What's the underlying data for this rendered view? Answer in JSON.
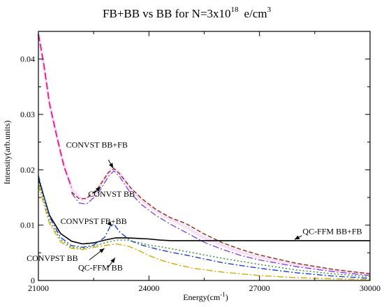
{
  "chart_data": {
    "type": "line",
    "title": {
      "main": "FB+BB vs BB for N=3x10",
      "exp": "18",
      "unit": "e/cm",
      "unit_exp": "3"
    },
    "xlabel": {
      "main": "Energy(cm",
      "sup": "-1",
      "close": ")"
    },
    "ylabel": "Intensity(arb.units)",
    "xlim": [
      21000,
      30000
    ],
    "ylim": [
      0,
      0.045
    ],
    "xticks": [
      21000,
      24000,
      27000,
      30000
    ],
    "xtick_labels": [
      "21000",
      "24000",
      "27000",
      "30000"
    ],
    "yticks": [
      0,
      0.01,
      0.02,
      0.03,
      0.04
    ],
    "ytick_labels": [
      "0",
      "0.01",
      "0.02",
      "0.03",
      "0.04"
    ],
    "grid": false,
    "series": [
      {
        "color": "#cc00cc",
        "dash": "",
        "width": 4,
        "opacity": 0.12,
        "x": [
          21000,
          21300,
          21600,
          21900,
          22200,
          22500,
          22800,
          23000,
          23200,
          23500,
          23800,
          24200,
          24600,
          25000,
          25500,
          26000,
          26500,
          27000,
          28000,
          29000,
          30000
        ],
        "y": [
          0.0445,
          0.032,
          0.023,
          0.0165,
          0.0145,
          0.0155,
          0.0185,
          0.0205,
          0.0195,
          0.0165,
          0.0145,
          0.0125,
          0.011,
          0.0097,
          0.0077,
          0.0063,
          0.0051,
          0.0042,
          0.0028,
          0.0018,
          0.0012
        ]
      },
      {
        "color": "#e8197f",
        "dash": "10,4",
        "width": 1.8,
        "x": [
          21000,
          21150,
          21300,
          21500,
          21700,
          21900
        ],
        "y": [
          0.0445,
          0.039,
          0.032,
          0.026,
          0.0205,
          0.0168
        ]
      },
      {
        "color": "#7b3fe8",
        "dash": "9,3,2,3",
        "width": 1.3,
        "x": [
          21900,
          22100,
          22300,
          22600,
          22900,
          23050,
          23200,
          23500,
          23800,
          24200,
          24600,
          25000,
          25500,
          26000,
          26500,
          27000,
          28000,
          29000,
          30000
        ],
        "y": [
          0.0158,
          0.014,
          0.0138,
          0.0155,
          0.0188,
          0.0198,
          0.0188,
          0.0158,
          0.0137,
          0.0117,
          0.0101,
          0.0087,
          0.0069,
          0.0056,
          0.0045,
          0.0037,
          0.0025,
          0.0016,
          0.0009
        ]
      },
      {
        "color": "#8b2e0f",
        "dash": "6,3",
        "width": 1.4,
        "x": [
          21900,
          22100,
          22300,
          22600,
          22900,
          23050,
          23200,
          23500,
          23800,
          24200,
          24600,
          25000,
          25500,
          26000,
          26500,
          27000,
          28000,
          29000,
          30000
        ],
        "y": [
          0.016,
          0.0148,
          0.0148,
          0.0165,
          0.0195,
          0.0202,
          0.0193,
          0.0168,
          0.0148,
          0.0128,
          0.0113,
          0.0103,
          0.0084,
          0.0068,
          0.0056,
          0.0046,
          0.0031,
          0.002,
          0.0012
        ]
      },
      {
        "color": "#000000",
        "dash": "",
        "width": 1.6,
        "x": [
          21000,
          21300,
          21600,
          21900,
          22200,
          22500,
          22800,
          23100,
          23400,
          23700,
          24000,
          24300,
          24600,
          25000,
          26000,
          27000,
          28000,
          29000,
          30000
        ],
        "y": [
          0.0185,
          0.0118,
          0.0085,
          0.0071,
          0.0066,
          0.0068,
          0.0073,
          0.0077,
          0.0077,
          0.0076,
          0.0075,
          0.0073,
          0.0072,
          0.0072,
          0.0072,
          0.0072,
          0.0072,
          0.0072,
          0.0072
        ]
      },
      {
        "color": "#1f3fcf",
        "dash": "8,3,2,3",
        "width": 1.4,
        "x": [
          21000,
          21300,
          21600,
          21900,
          22200,
          22500,
          22800,
          22950,
          23050,
          23200,
          23500,
          23800,
          24200,
          24600,
          25000,
          25500,
          26000,
          27000,
          28000,
          29000,
          30000
        ],
        "y": [
          0.019,
          0.0115,
          0.0078,
          0.0063,
          0.006,
          0.0064,
          0.0078,
          0.0098,
          0.0102,
          0.0088,
          0.0072,
          0.0064,
          0.0057,
          0.0051,
          0.0046,
          0.0039,
          0.0032,
          0.0022,
          0.0014,
          0.0008,
          0.0004
        ]
      },
      {
        "color": "#2a8a2a",
        "dash": "2,3",
        "width": 1.4,
        "x": [
          21000,
          21300,
          21600,
          21900,
          22200,
          22500,
          22800,
          23100,
          23400,
          23700,
          24000,
          24400,
          24800,
          25200,
          25600,
          26000,
          27000,
          28000,
          29000,
          30000
        ],
        "y": [
          0.0178,
          0.0108,
          0.0074,
          0.006,
          0.0058,
          0.0062,
          0.0068,
          0.0073,
          0.0073,
          0.0069,
          0.0064,
          0.006,
          0.0055,
          0.005,
          0.0045,
          0.004,
          0.0029,
          0.0019,
          0.0012,
          0.0007
        ]
      },
      {
        "color": "#d8a800",
        "dash": "9,3,2,3",
        "width": 1.4,
        "x": [
          21000,
          21300,
          21600,
          21900,
          22200,
          22500,
          22800,
          23100,
          23400,
          23700,
          24000,
          24400,
          24800,
          25200,
          26000,
          27000,
          28000,
          29000,
          30000
        ],
        "y": [
          0.0172,
          0.0103,
          0.007,
          0.0058,
          0.0056,
          0.006,
          0.0063,
          0.0066,
          0.0063,
          0.0055,
          0.0045,
          0.0035,
          0.0028,
          0.0022,
          0.0015,
          0.0009,
          0.0005,
          0.0003,
          0.0002
        ]
      }
    ],
    "annotations": [
      {
        "text": "CONVST BB+FB",
        "x": 21750,
        "y": 0.024,
        "arrow": [
          [
            22900,
            0.0218
          ],
          [
            23030,
            0.0203
          ]
        ]
      },
      {
        "text": "CONVST BB",
        "x": 22350,
        "y": 0.0151,
        "arrow": [
          [
            22500,
            0.0158
          ],
          [
            22690,
            0.0169
          ]
        ]
      },
      {
        "text": "CONVPST FB+BB",
        "x": 21600,
        "y": 0.0102,
        "arrow": [
          [
            22900,
            0.0105
          ],
          [
            23000,
            0.0098
          ]
        ]
      },
      {
        "text": "CONVPST BB",
        "x": 20680,
        "y": 0.0035,
        "arrow": [
          [
            22380,
            0.0037
          ],
          [
            22790,
            0.0058
          ]
        ]
      },
      {
        "text": "QC-FFM BB",
        "x": 22080,
        "y": 0.0018,
        "arrow": [
          [
            22900,
            0.0024
          ],
          [
            23080,
            0.0041
          ]
        ]
      },
      {
        "text": "QC-FFM BB+FB",
        "x": 28170,
        "y": 0.0084,
        "arrow": [
          [
            28150,
            0.0081
          ],
          [
            27950,
            0.0074
          ]
        ]
      }
    ]
  }
}
